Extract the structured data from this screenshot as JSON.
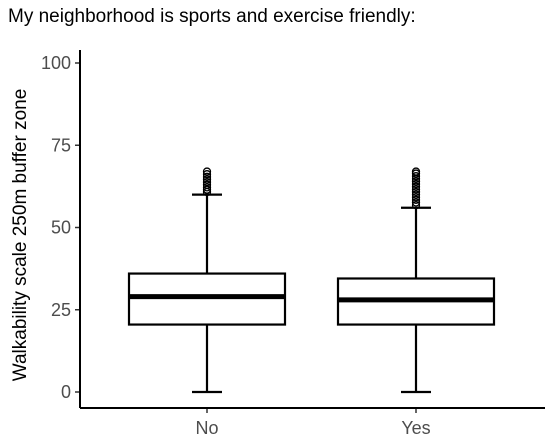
{
  "chart_data": {
    "type": "box",
    "title": "My neighborhood is sports and exercise friendly:",
    "xlabel": "",
    "ylabel": "Walkability scale 250m buffer zone",
    "ylim": [
      0,
      100
    ],
    "yticks": [
      0,
      25,
      50,
      75,
      100
    ],
    "categories": [
      "No",
      "Yes"
    ],
    "boxes": [
      {
        "category": "No",
        "whisker_low": 0,
        "q1": 20.5,
        "median": 29,
        "q3": 36,
        "whisker_high": 60,
        "outliers": [
          60.8,
          61.5,
          62.2,
          63,
          63.8,
          64.6,
          65.4,
          66.2,
          67
        ]
      },
      {
        "category": "Yes",
        "whisker_low": 0,
        "q1": 20.5,
        "median": 28,
        "q3": 34.5,
        "whisker_high": 56,
        "outliers": [
          56.8,
          57.6,
          58.4,
          59.2,
          60,
          60.8,
          61.6,
          62.4,
          63.2,
          64,
          64.8,
          65.6,
          66.4,
          67
        ]
      }
    ],
    "grid": false,
    "legend": "none",
    "colors": {
      "box_fill": "#ffffff",
      "stroke": "#000000",
      "tick_text": "#4d4d4d"
    }
  }
}
